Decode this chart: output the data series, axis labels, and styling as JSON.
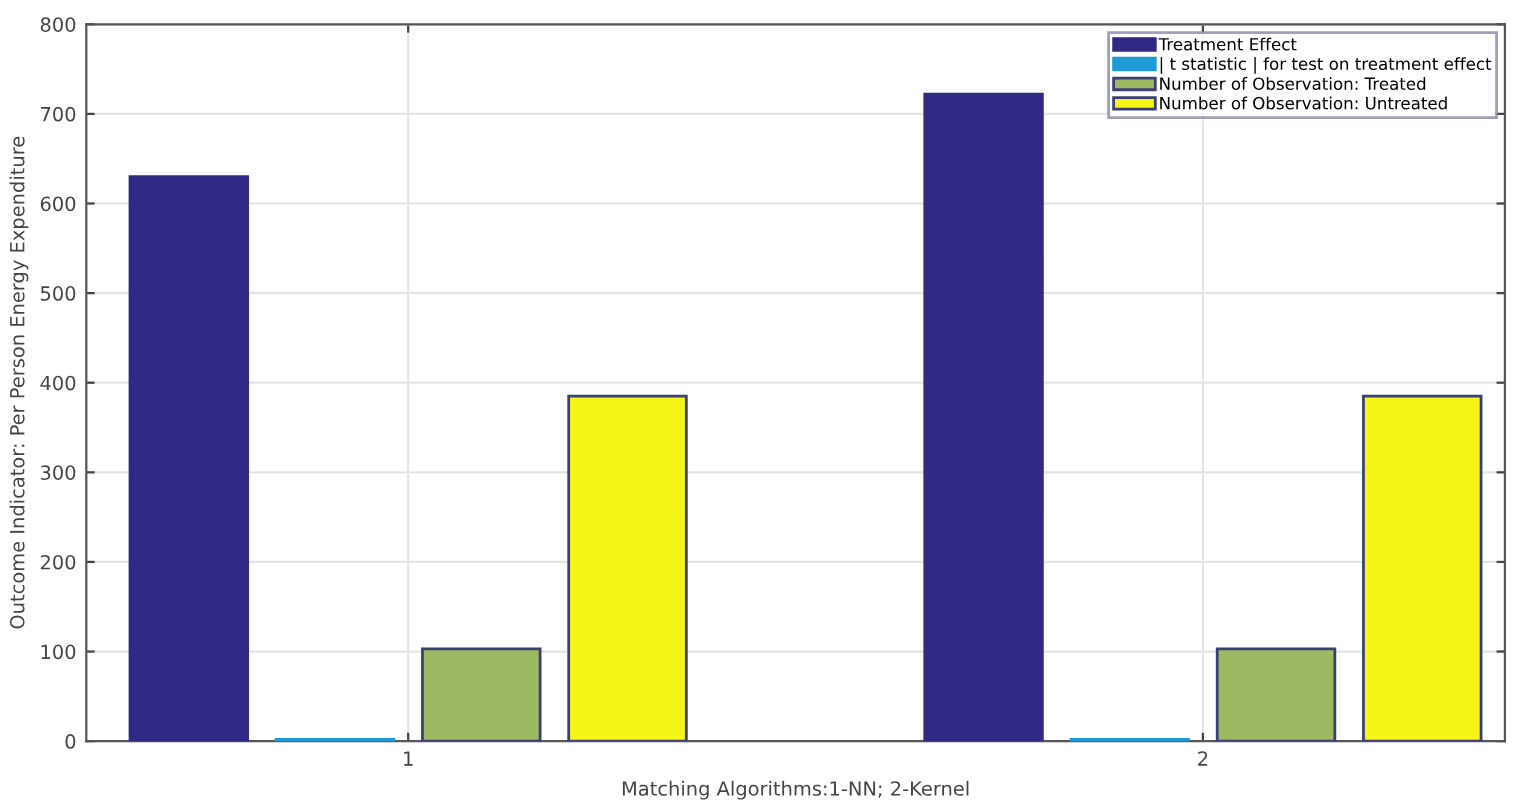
{
  "chart_data": {
    "type": "bar",
    "xlabel": "Matching Algorithms:1-NN; 2-Kernel",
    "ylabel": "Outcome Indicator: Per Person Energy Expenditure",
    "categories": [
      "1",
      "2"
    ],
    "series": [
      {
        "name": "Treatment Effect",
        "color": "#312a84",
        "values": [
          630,
          722
        ]
      },
      {
        "name": "| t statistic | for test on treatment effect",
        "color": "#1e9bd7",
        "values": [
          2,
          2
        ]
      },
      {
        "name": "Number of Observation: Treated",
        "color": "#9dba63",
        "values": [
          103,
          103
        ]
      },
      {
        "name": "Number of Observation: Untreated",
        "color": "#f5f516",
        "values": [
          385,
          385
        ]
      }
    ],
    "ylim": [
      0,
      800
    ],
    "yticks": [
      0,
      100,
      200,
      300,
      400,
      500,
      600,
      700,
      800
    ],
    "grid": true,
    "legend": "top right"
  }
}
